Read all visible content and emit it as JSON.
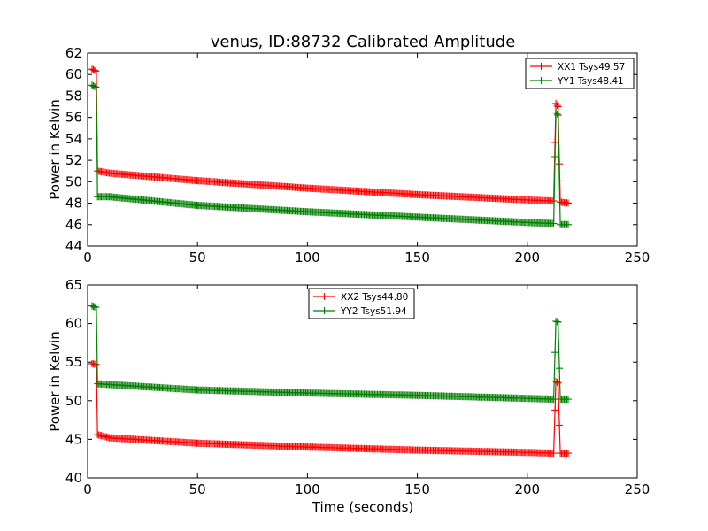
{
  "chart_data": [
    {
      "type": "line",
      "title": "venus, ID:88732 Calibrated Amplitude",
      "xlabel": "",
      "ylabel": "Power in Kelvin",
      "xlim": [
        0,
        250
      ],
      "ylim": [
        44,
        62
      ],
      "xticks": [
        "0",
        "50",
        "100",
        "150",
        "200",
        "250"
      ],
      "yticks": [
        "44",
        "46",
        "48",
        "50",
        "52",
        "54",
        "56",
        "58",
        "60",
        "62"
      ],
      "grid": false,
      "legend_position": "top-right",
      "series": [
        {
          "name": "XX1 Tsys49.57",
          "color": "#ff0000",
          "points": [
            [
              2,
              60.5
            ],
            [
              4,
              60.3
            ],
            [
              4.5,
              51.0
            ],
            [
              10,
              50.8
            ],
            [
              50,
              50.1
            ],
            [
              100,
              49.4
            ],
            [
              150,
              48.8
            ],
            [
              200,
              48.3
            ],
            [
              212,
              48.2
            ],
            [
              213,
              57.3
            ],
            [
              214,
              57.0
            ],
            [
              215,
              48.1
            ],
            [
              219,
              48.0
            ]
          ]
        },
        {
          "name": "YY1 Tsys48.41",
          "color": "#008000",
          "points": [
            [
              2,
              59.0
            ],
            [
              4,
              58.8
            ],
            [
              4.5,
              48.6
            ],
            [
              10,
              48.6
            ],
            [
              50,
              47.8
            ],
            [
              100,
              47.2
            ],
            [
              150,
              46.7
            ],
            [
              200,
              46.2
            ],
            [
              212,
              46.1
            ],
            [
              213,
              56.5
            ],
            [
              214,
              56.2
            ],
            [
              215,
              46.0
            ],
            [
              219,
              46.0
            ]
          ]
        }
      ]
    },
    {
      "type": "line",
      "title": "",
      "xlabel": "Time (seconds)",
      "ylabel": "Power in Kelvin",
      "xlim": [
        0,
        250
      ],
      "ylim": [
        40,
        65
      ],
      "xticks": [
        "0",
        "50",
        "100",
        "150",
        "200",
        "250"
      ],
      "yticks": [
        "40",
        "45",
        "50",
        "55",
        "60",
        "65"
      ],
      "grid": false,
      "legend_position": "top-center",
      "series": [
        {
          "name": "XX2 Tsys44.80",
          "color": "#ff0000",
          "points": [
            [
              2,
              54.8
            ],
            [
              4,
              54.7
            ],
            [
              4.5,
              45.6
            ],
            [
              10,
              45.2
            ],
            [
              50,
              44.5
            ],
            [
              100,
              44.0
            ],
            [
              150,
              43.6
            ],
            [
              200,
              43.3
            ],
            [
              212,
              43.2
            ],
            [
              213,
              52.5
            ],
            [
              214,
              52.3
            ],
            [
              215,
              43.2
            ],
            [
              219,
              43.2
            ]
          ]
        },
        {
          "name": "YY2 Tsys51.94",
          "color": "#008000",
          "points": [
            [
              2,
              62.3
            ],
            [
              4,
              62.1
            ],
            [
              4.5,
              52.2
            ],
            [
              10,
              52.1
            ],
            [
              50,
              51.4
            ],
            [
              100,
              51.0
            ],
            [
              150,
              50.7
            ],
            [
              200,
              50.3
            ],
            [
              212,
              50.2
            ],
            [
              213,
              60.3
            ],
            [
              214,
              60.2
            ],
            [
              215,
              50.2
            ],
            [
              219,
              50.2
            ]
          ]
        }
      ]
    }
  ]
}
